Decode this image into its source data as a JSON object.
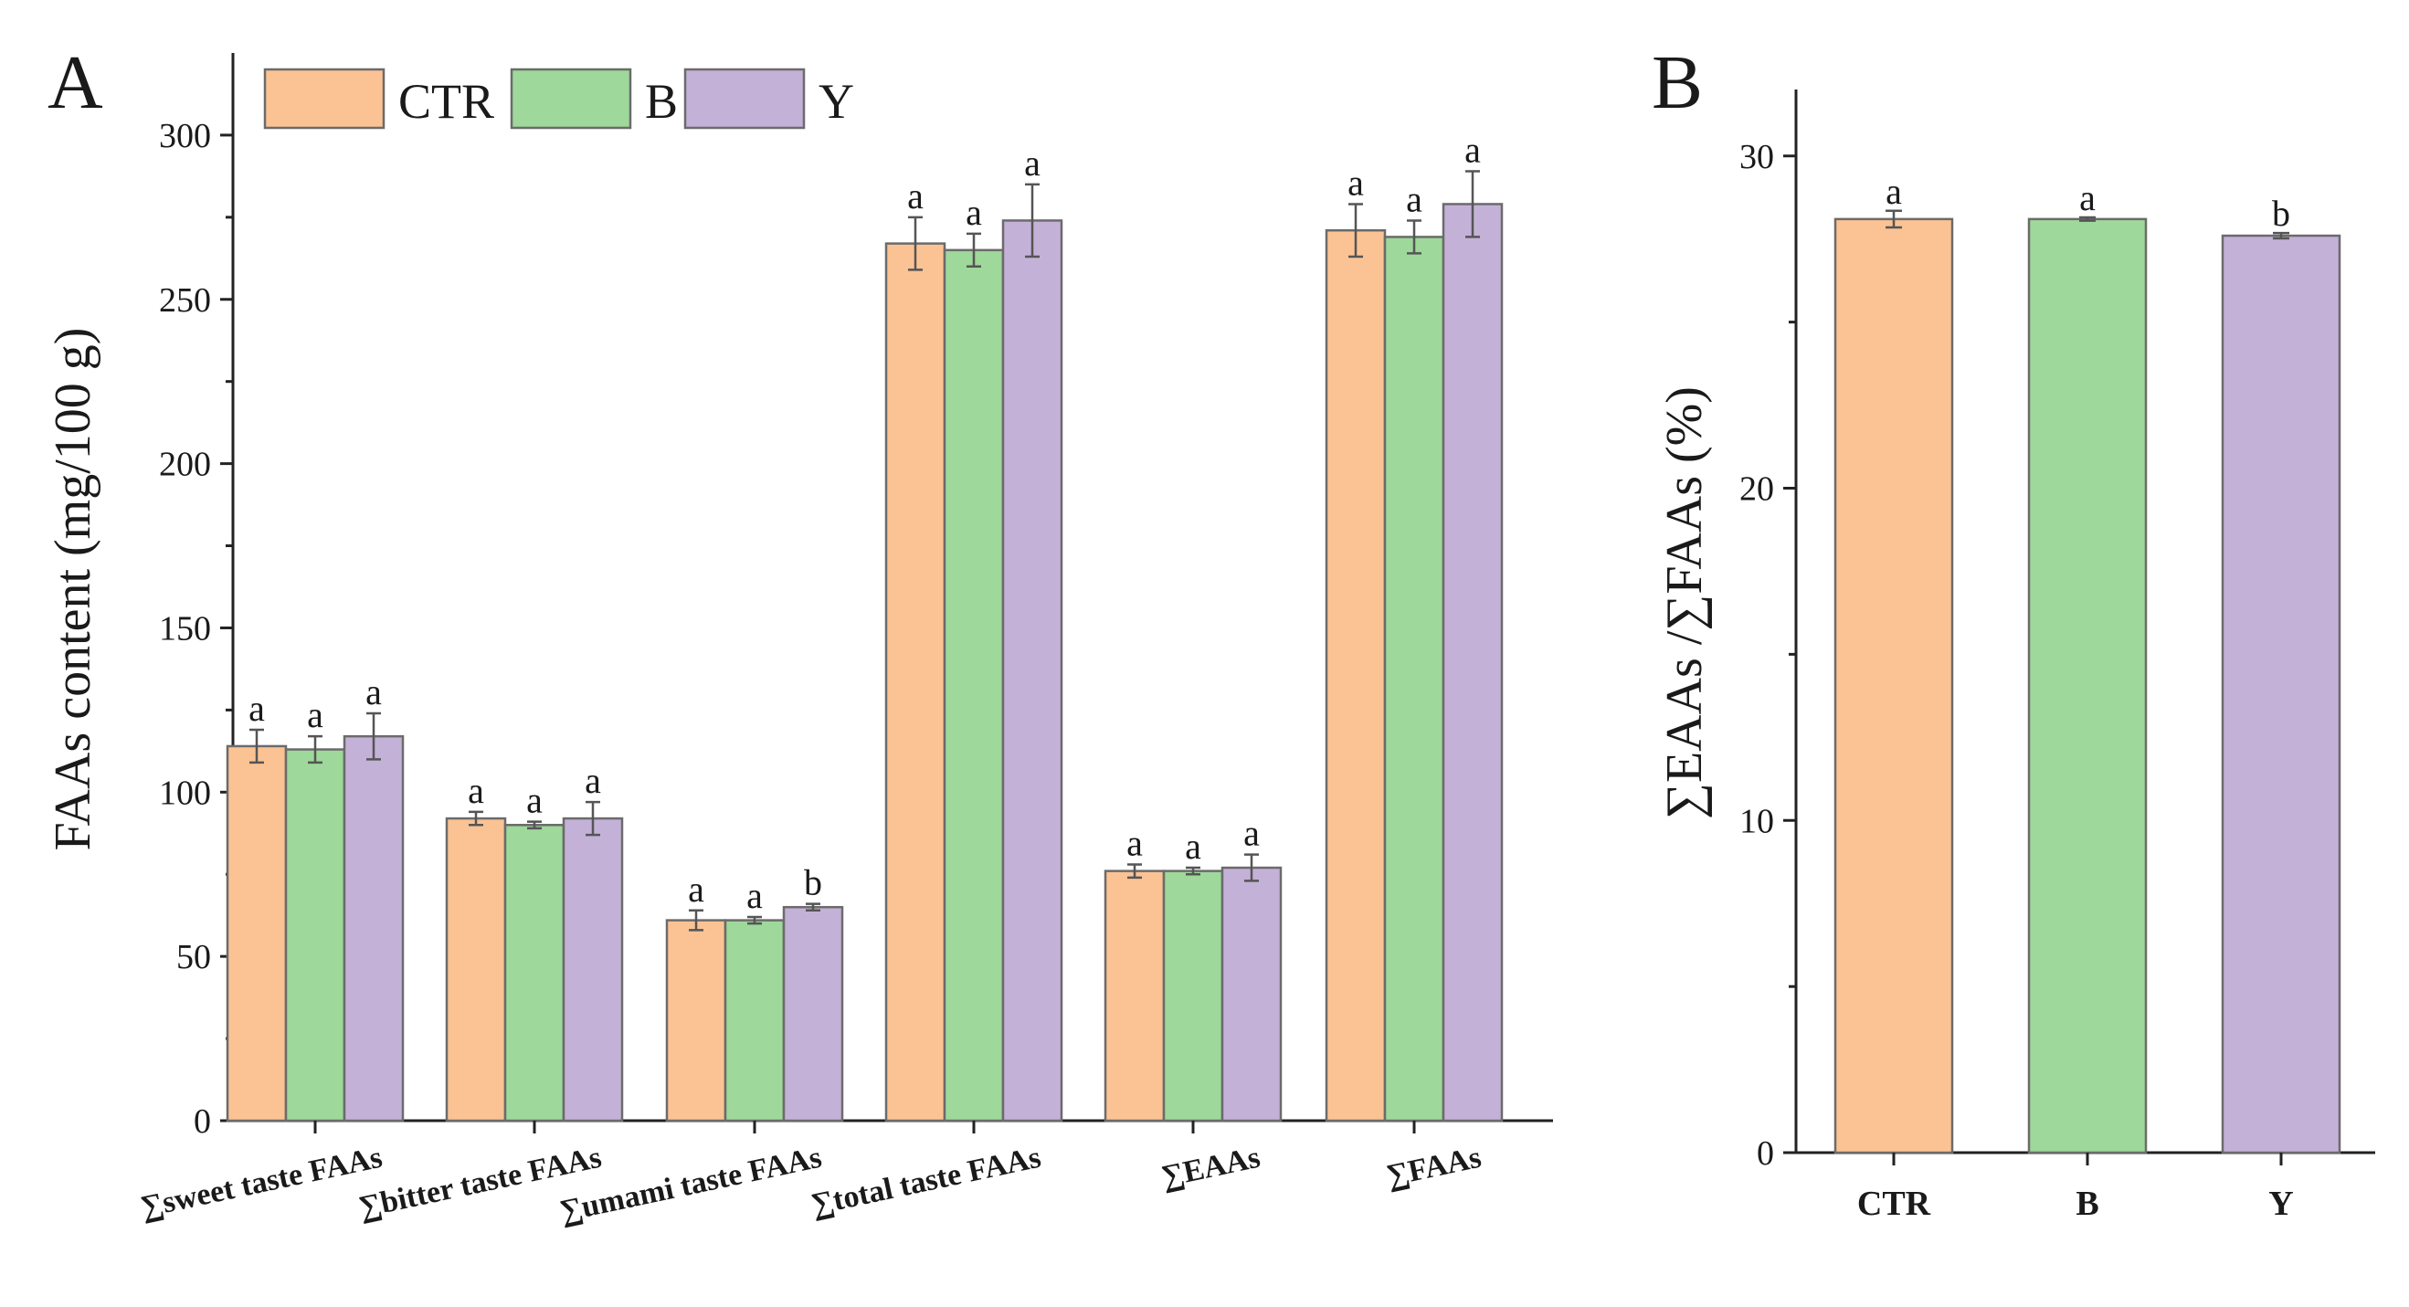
{
  "colors": {
    "CTR": "#fbc394",
    "B": "#9ed89a",
    "Y": "#c4b1d8"
  },
  "chart_data": [
    {
      "panel_label": "A",
      "type": "bar",
      "ylabel": "FAAs content (mg/100 g)",
      "ylim": [
        0,
        325
      ],
      "yticks": [
        0,
        50,
        100,
        150,
        200,
        250,
        300
      ],
      "categories": [
        "∑sweet taste FAAs",
        "∑bitter taste FAAs",
        "∑umami taste FAAs",
        "∑total taste FAAs",
        "∑EAAs",
        "∑FAAs"
      ],
      "legend": [
        "CTR",
        "B",
        "Y"
      ],
      "legend_position": "top-left",
      "series": [
        {
          "name": "CTR",
          "values": [
            114,
            92,
            61,
            267,
            76,
            271
          ],
          "errors": [
            5,
            2,
            3,
            8,
            2,
            8
          ],
          "letters": [
            "a",
            "a",
            "a",
            "a",
            "a",
            "a"
          ]
        },
        {
          "name": "B",
          "values": [
            113,
            90,
            61,
            265,
            76,
            269
          ],
          "errors": [
            4,
            1,
            1,
            5,
            1,
            5
          ],
          "letters": [
            "a",
            "a",
            "a",
            "a",
            "a",
            "a"
          ]
        },
        {
          "name": "Y",
          "values": [
            117,
            92,
            65,
            274,
            77,
            279
          ],
          "errors": [
            7,
            5,
            1,
            11,
            4,
            10
          ],
          "letters": [
            "a",
            "a",
            "b",
            "a",
            "a",
            "a"
          ]
        }
      ]
    },
    {
      "panel_label": "B",
      "type": "bar",
      "ylabel": "∑EAAs /∑FAAs (%)",
      "ylim": [
        0,
        32
      ],
      "yticks": [
        0,
        10,
        20,
        30
      ],
      "categories": [
        "CTR",
        "B",
        "Y"
      ],
      "values": [
        28.1,
        28.1,
        27.6
      ],
      "errors": [
        0.25,
        0.05,
        0.08
      ],
      "letters": [
        "a",
        "a",
        "b"
      ]
    }
  ]
}
